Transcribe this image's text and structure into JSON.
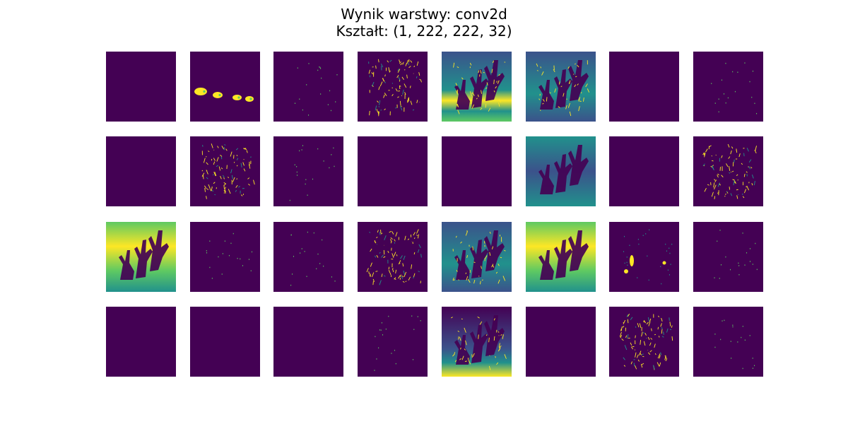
{
  "figure": {
    "title_line1": "Wynik warstwy: conv2d",
    "title_line2": "Kształt: (1, 222, 222, 32)"
  },
  "colormap": {
    "name": "viridis",
    "low": "#440154",
    "mid_low": "#3b528b",
    "mid": "#21918c",
    "mid_high": "#5ec962",
    "high": "#fde725"
  },
  "feature_maps": {
    "count": 32,
    "rows": 4,
    "columns": 8,
    "activation_style": [
      "empty",
      "bright-blobs",
      "sparse-dots",
      "thin-edges",
      "full-scene",
      "full-scene-edges",
      "empty",
      "sparse-dots",
      "empty",
      "thin-edges",
      "sparse-dots",
      "empty",
      "empty",
      "full-scene-teal",
      "empty",
      "thin-edges",
      "full-scene-bright",
      "sparse-dots",
      "sparse-dots",
      "thin-edges",
      "full-scene-edges",
      "full-scene-bright",
      "bright-spots",
      "sparse-dots",
      "empty",
      "empty",
      "empty",
      "sparse-dots",
      "full-scene-dark",
      "empty",
      "thin-edges",
      "sparse-dots"
    ]
  }
}
